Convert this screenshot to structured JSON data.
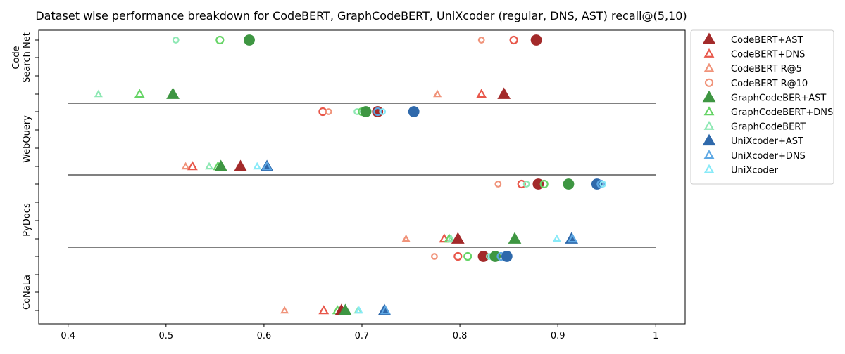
{
  "chart_data": {
    "type": "scatter",
    "title": "Dataset wise performance breakdown for CodeBERT, GraphCodeBERT, UniXcoder (regular, DNS, AST) recall@(5,10)",
    "xlabel": "",
    "ylabel": "",
    "xlim": [
      0.37,
      1.03
    ],
    "x_ticks": [
      "0.4",
      "0.5",
      "0.6",
      "0.7",
      "0.8",
      "0.9",
      "1"
    ],
    "y_ticks": [
      "",
      "",
      "",
      "",
      "",
      "",
      "",
      "",
      "",
      "",
      "",
      "",
      "",
      "",
      "",
      "",
      ""
    ],
    "groups": [
      {
        "label": "Code\nSearch Net",
        "label_lines": [
          "Code",
          "Search Net"
        ]
      },
      {
        "label": "WebQuery",
        "label_lines": [
          "WebQuery"
        ]
      },
      {
        "label": "PyDocs",
        "label_lines": [
          "PyDocs"
        ]
      },
      {
        "label": "CoNaLa",
        "label_lines": [
          "CoNaLa"
        ]
      }
    ],
    "grid": false,
    "legend_position": "outside-right",
    "legend": [
      {
        "label": "CodeBERT+AST",
        "marker": "triangle",
        "fill": "filled",
        "color": "#a32a2a"
      },
      {
        "label": "CodeBERT+DNS",
        "marker": "triangle",
        "fill": "hollow",
        "color": "#e8574a"
      },
      {
        "label": "CodeBERT R@5",
        "marker": "triangle",
        "fill": "hollow",
        "color": "#f0937a"
      },
      {
        "label": "CodeBERT R@10",
        "marker": "circle",
        "fill": "hollow",
        "color": "#f0937a"
      },
      {
        "label": "GraphCodeBER+AST",
        "marker": "triangle",
        "fill": "filled",
        "color": "#3e9642"
      },
      {
        "label": "GraphCodeBERT+DNS",
        "marker": "triangle",
        "fill": "hollow",
        "color": "#66d466"
      },
      {
        "label": "GraphCodeBERT",
        "marker": "triangle",
        "fill": "hollow",
        "color": "#8ee8b4"
      },
      {
        "label": "UniXcoder+AST",
        "marker": "triangle",
        "fill": "filled",
        "color": "#2f69ab"
      },
      {
        "label": "UniXcoder+DNS",
        "marker": "triangle",
        "fill": "hollow",
        "color": "#5ea8e4"
      },
      {
        "label": "UniXcoder",
        "marker": "triangle",
        "fill": "hollow",
        "color": "#88eaf8"
      }
    ],
    "series": [
      {
        "dataset": "Code Search Net",
        "metric": "R@10",
        "points": [
          {
            "model": "GraphCodeBERT",
            "x": 0.51,
            "marker": "circle",
            "fill": "hollow",
            "color": "#8ee8b4",
            "size": "small"
          },
          {
            "model": "GraphCodeBERT+DNS",
            "x": 0.555,
            "marker": "circle",
            "fill": "hollow",
            "color": "#66d466",
            "size": "medium"
          },
          {
            "model": "GraphCodeBER+AST",
            "x": 0.585,
            "marker": "circle",
            "fill": "filled",
            "color": "#3e9642",
            "size": "large"
          },
          {
            "model": "CodeBERT R@10",
            "x": 0.822,
            "marker": "circle",
            "fill": "hollow",
            "color": "#f0937a",
            "size": "small"
          },
          {
            "model": "CodeBERT+DNS",
            "x": 0.855,
            "marker": "circle",
            "fill": "hollow",
            "color": "#e8574a",
            "size": "medium"
          },
          {
            "model": "CodeBERT+AST",
            "x": 0.878,
            "marker": "circle",
            "fill": "filled",
            "color": "#a32a2a",
            "size": "large"
          }
        ]
      },
      {
        "dataset": "Code Search Net",
        "metric": "R@5",
        "points": [
          {
            "model": "GraphCodeBERT",
            "x": 0.431,
            "marker": "triangle",
            "fill": "hollow",
            "color": "#8ee8b4",
            "size": "small"
          },
          {
            "model": "GraphCodeBERT+DNS",
            "x": 0.473,
            "marker": "triangle",
            "fill": "hollow",
            "color": "#66d466",
            "size": "medium"
          },
          {
            "model": "GraphCodeBER+AST",
            "x": 0.507,
            "marker": "triangle",
            "fill": "filled",
            "color": "#3e9642",
            "size": "large"
          },
          {
            "model": "CodeBERT R@5",
            "x": 0.777,
            "marker": "triangle",
            "fill": "hollow",
            "color": "#f0937a",
            "size": "small"
          },
          {
            "model": "CodeBERT+DNS",
            "x": 0.822,
            "marker": "triangle",
            "fill": "hollow",
            "color": "#e8574a",
            "size": "medium"
          },
          {
            "model": "CodeBERT+AST",
            "x": 0.845,
            "marker": "triangle",
            "fill": "filled",
            "color": "#a32a2a",
            "size": "large"
          }
        ]
      },
      {
        "dataset": "WebQuery",
        "metric": "R@10",
        "points": [
          {
            "model": "CodeBERT+DNS",
            "x": 0.66,
            "marker": "circle",
            "fill": "hollow",
            "color": "#e8574a",
            "size": "medium"
          },
          {
            "model": "CodeBERT R@10",
            "x": 0.666,
            "marker": "circle",
            "fill": "hollow",
            "color": "#f0937a",
            "size": "small"
          },
          {
            "model": "GraphCodeBERT",
            "x": 0.695,
            "marker": "circle",
            "fill": "hollow",
            "color": "#8ee8b4",
            "size": "small"
          },
          {
            "model": "GraphCodeBERT+DNS",
            "x": 0.7,
            "marker": "circle",
            "fill": "hollow",
            "color": "#66d466",
            "size": "medium"
          },
          {
            "model": "GraphCodeBER+AST",
            "x": 0.704,
            "marker": "circle",
            "fill": "filled",
            "color": "#3e9642",
            "size": "large"
          },
          {
            "model": "CodeBERT+AST",
            "x": 0.716,
            "marker": "circle",
            "fill": "filled",
            "color": "#a32a2a",
            "size": "large"
          },
          {
            "model": "UniXcoder+DNS",
            "x": 0.716,
            "marker": "circle",
            "fill": "hollow",
            "color": "#5ea8e4",
            "size": "medium"
          },
          {
            "model": "UniXcoder",
            "x": 0.721,
            "marker": "circle",
            "fill": "hollow",
            "color": "#88eaf8",
            "size": "small"
          },
          {
            "model": "UniXcoder+AST",
            "x": 0.753,
            "marker": "circle",
            "fill": "filled",
            "color": "#2f69ab",
            "size": "large"
          }
        ]
      },
      {
        "dataset": "WebQuery",
        "metric": "R@5",
        "points": [
          {
            "model": "CodeBERT R@5",
            "x": 0.52,
            "marker": "triangle",
            "fill": "hollow",
            "color": "#f0937a",
            "size": "small"
          },
          {
            "model": "CodeBERT+DNS",
            "x": 0.527,
            "marker": "triangle",
            "fill": "hollow",
            "color": "#e8574a",
            "size": "medium"
          },
          {
            "model": "GraphCodeBERT",
            "x": 0.544,
            "marker": "triangle",
            "fill": "hollow",
            "color": "#8ee8b4",
            "size": "small"
          },
          {
            "model": "GraphCodeBERT+DNS",
            "x": 0.553,
            "marker": "triangle",
            "fill": "hollow",
            "color": "#66d466",
            "size": "medium"
          },
          {
            "model": "GraphCodeBER+AST",
            "x": 0.556,
            "marker": "triangle",
            "fill": "filled",
            "color": "#3e9642",
            "size": "large"
          },
          {
            "model": "CodeBERT+AST",
            "x": 0.576,
            "marker": "triangle",
            "fill": "filled",
            "color": "#a32a2a",
            "size": "large"
          },
          {
            "model": "UniXcoder",
            "x": 0.593,
            "marker": "triangle",
            "fill": "hollow",
            "color": "#88eaf8",
            "size": "small"
          },
          {
            "model": "UniXcoder+AST",
            "x": 0.603,
            "marker": "triangle",
            "fill": "filled",
            "color": "#2f69ab",
            "size": "large"
          },
          {
            "model": "UniXcoder+DNS",
            "x": 0.603,
            "marker": "triangle",
            "fill": "hollow",
            "color": "#5ea8e4",
            "size": "medium"
          }
        ]
      },
      {
        "dataset": "PyDocs",
        "metric": "R@10",
        "points": [
          {
            "model": "CodeBERT R@10",
            "x": 0.839,
            "marker": "circle",
            "fill": "hollow",
            "color": "#f0937a",
            "size": "small"
          },
          {
            "model": "CodeBERT+DNS",
            "x": 0.863,
            "marker": "circle",
            "fill": "hollow",
            "color": "#e8574a",
            "size": "medium"
          },
          {
            "model": "GraphCodeBERT",
            "x": 0.868,
            "marker": "circle",
            "fill": "hollow",
            "color": "#8ee8b4",
            "size": "small"
          },
          {
            "model": "CodeBERT+AST",
            "x": 0.88,
            "marker": "circle",
            "fill": "filled",
            "color": "#a32a2a",
            "size": "large"
          },
          {
            "model": "GraphCodeBERT+DNS",
            "x": 0.886,
            "marker": "circle",
            "fill": "hollow",
            "color": "#66d466",
            "size": "medium"
          },
          {
            "model": "GraphCodeBER+AST",
            "x": 0.911,
            "marker": "circle",
            "fill": "filled",
            "color": "#3e9642",
            "size": "large"
          },
          {
            "model": "UniXcoder+AST",
            "x": 0.94,
            "marker": "circle",
            "fill": "filled",
            "color": "#2f69ab",
            "size": "large"
          },
          {
            "model": "UniXcoder+DNS",
            "x": 0.944,
            "marker": "circle",
            "fill": "hollow",
            "color": "#5ea8e4",
            "size": "medium"
          },
          {
            "model": "UniXcoder",
            "x": 0.946,
            "marker": "circle",
            "fill": "hollow",
            "color": "#88eaf8",
            "size": "small"
          }
        ]
      },
      {
        "dataset": "PyDocs",
        "metric": "R@5",
        "points": [
          {
            "model": "CodeBERT R@5",
            "x": 0.745,
            "marker": "triangle",
            "fill": "hollow",
            "color": "#f0937a",
            "size": "small"
          },
          {
            "model": "CodeBERT+DNS",
            "x": 0.784,
            "marker": "triangle",
            "fill": "hollow",
            "color": "#e8574a",
            "size": "medium"
          },
          {
            "model": "GraphCodeBERT+DNS",
            "x": 0.789,
            "marker": "triangle",
            "fill": "hollow",
            "color": "#66d466",
            "size": "medium"
          },
          {
            "model": "GraphCodeBERT",
            "x": 0.791,
            "marker": "triangle",
            "fill": "hollow",
            "color": "#8ee8b4",
            "size": "small"
          },
          {
            "model": "CodeBERT+AST",
            "x": 0.798,
            "marker": "triangle",
            "fill": "filled",
            "color": "#a32a2a",
            "size": "large"
          },
          {
            "model": "GraphCodeBER+AST",
            "x": 0.856,
            "marker": "triangle",
            "fill": "filled",
            "color": "#3e9642",
            "size": "large"
          },
          {
            "model": "UniXcoder",
            "x": 0.899,
            "marker": "triangle",
            "fill": "hollow",
            "color": "#88eaf8",
            "size": "small"
          },
          {
            "model": "UniXcoder+AST",
            "x": 0.914,
            "marker": "triangle",
            "fill": "filled",
            "color": "#2f69ab",
            "size": "large"
          },
          {
            "model": "UniXcoder+DNS",
            "x": 0.915,
            "marker": "triangle",
            "fill": "hollow",
            "color": "#5ea8e4",
            "size": "medium"
          }
        ]
      },
      {
        "dataset": "CoNaLa",
        "metric": "R@10",
        "points": [
          {
            "model": "CodeBERT R@10",
            "x": 0.774,
            "marker": "circle",
            "fill": "hollow",
            "color": "#f0937a",
            "size": "small"
          },
          {
            "model": "CodeBERT+DNS",
            "x": 0.798,
            "marker": "circle",
            "fill": "hollow",
            "color": "#e8574a",
            "size": "medium"
          },
          {
            "model": "GraphCodeBERT+DNS",
            "x": 0.808,
            "marker": "circle",
            "fill": "hollow",
            "color": "#66d466",
            "size": "medium"
          },
          {
            "model": "CodeBERT+AST",
            "x": 0.824,
            "marker": "circle",
            "fill": "filled",
            "color": "#a32a2a",
            "size": "large"
          },
          {
            "model": "GraphCodeBERT",
            "x": 0.83,
            "marker": "circle",
            "fill": "hollow",
            "color": "#8ee8b4",
            "size": "small"
          },
          {
            "model": "UniXcoder",
            "x": 0.832,
            "marker": "circle",
            "fill": "hollow",
            "color": "#88eaf8",
            "size": "small"
          },
          {
            "model": "GraphCodeBER+AST",
            "x": 0.836,
            "marker": "circle",
            "fill": "filled",
            "color": "#3e9642",
            "size": "large"
          },
          {
            "model": "UniXcoder+DNS",
            "x": 0.842,
            "marker": "circle",
            "fill": "hollow",
            "color": "#5ea8e4",
            "size": "medium"
          },
          {
            "model": "UniXcoder+AST",
            "x": 0.848,
            "marker": "circle",
            "fill": "filled",
            "color": "#2f69ab",
            "size": "large"
          }
        ]
      },
      {
        "dataset": "CoNaLa",
        "metric": "R@5",
        "points": [
          {
            "model": "CodeBERT R@5",
            "x": 0.621,
            "marker": "triangle",
            "fill": "hollow",
            "color": "#f0937a",
            "size": "small"
          },
          {
            "model": "CodeBERT+DNS",
            "x": 0.661,
            "marker": "triangle",
            "fill": "hollow",
            "color": "#e8574a",
            "size": "medium"
          },
          {
            "model": "GraphCodeBERT+DNS",
            "x": 0.675,
            "marker": "triangle",
            "fill": "hollow",
            "color": "#66d466",
            "size": "medium"
          },
          {
            "model": "CodeBERT+AST",
            "x": 0.679,
            "marker": "triangle",
            "fill": "filled",
            "color": "#a32a2a",
            "size": "large"
          },
          {
            "model": "GraphCodeBER+AST",
            "x": 0.683,
            "marker": "triangle",
            "fill": "filled",
            "color": "#3e9642",
            "size": "large"
          },
          {
            "model": "GraphCodeBERT",
            "x": 0.696,
            "marker": "triangle",
            "fill": "hollow",
            "color": "#8ee8b4",
            "size": "small"
          },
          {
            "model": "UniXcoder",
            "x": 0.697,
            "marker": "triangle",
            "fill": "hollow",
            "color": "#88eaf8",
            "size": "small"
          },
          {
            "model": "UniXcoder+AST",
            "x": 0.723,
            "marker": "triangle",
            "fill": "filled",
            "color": "#2f69ab",
            "size": "large"
          },
          {
            "model": "UniXcoder+DNS",
            "x": 0.724,
            "marker": "triangle",
            "fill": "hollow",
            "color": "#5ea8e4",
            "size": "medium"
          }
        ]
      }
    ]
  }
}
